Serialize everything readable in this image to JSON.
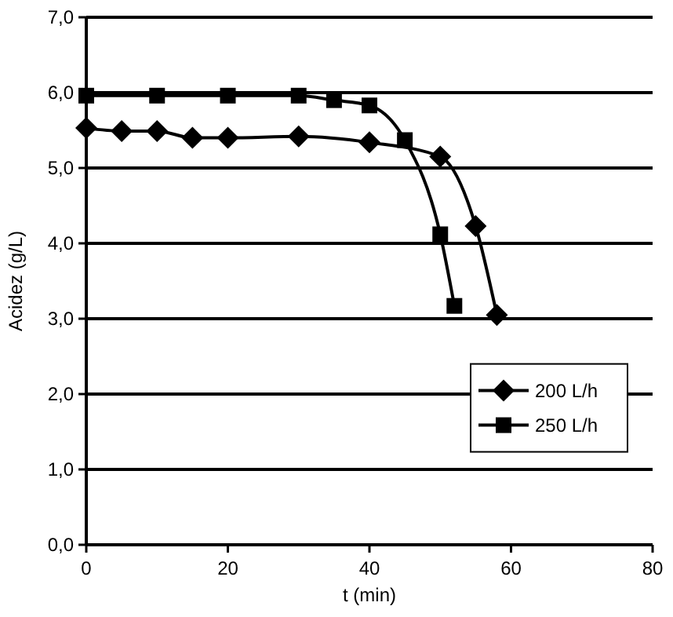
{
  "chart_data": {
    "type": "line",
    "xlabel": "t (min)",
    "ylabel": "Acidez (g/L)",
    "xlim": [
      0,
      80
    ],
    "xticks": [
      0,
      20,
      40,
      60,
      80
    ],
    "ylim": [
      0,
      7
    ],
    "yticks": [
      {
        "value": 0,
        "label": "0,0"
      },
      {
        "value": 1,
        "label": "1,0"
      },
      {
        "value": 2,
        "label": "2,0"
      },
      {
        "value": 3,
        "label": "3,0"
      },
      {
        "value": 4,
        "label": "4,0"
      },
      {
        "value": 5,
        "label": "5,0"
      },
      {
        "value": 6,
        "label": "6,0"
      },
      {
        "value": 7,
        "label": "7,0"
      }
    ],
    "grid": "y",
    "legend": "bottom right",
    "line_style": "solid",
    "series": [
      {
        "name": "200 L/h",
        "color": "#000000",
        "marker": "diamond",
        "x": [
          0,
          5,
          10,
          15,
          20,
          30,
          40,
          50,
          55,
          58
        ],
        "values": [
          5.53,
          5.49,
          5.49,
          5.4,
          5.4,
          5.42,
          5.34,
          5.15,
          4.23,
          3.05
        ]
      },
      {
        "name": "250 L/h",
        "color": "#000000",
        "marker": "square",
        "x": [
          0,
          10,
          20,
          30,
          35,
          40,
          45,
          50,
          52
        ],
        "values": [
          5.96,
          5.96,
          5.96,
          5.96,
          5.9,
          5.83,
          5.37,
          4.12,
          3.17
        ]
      }
    ]
  }
}
